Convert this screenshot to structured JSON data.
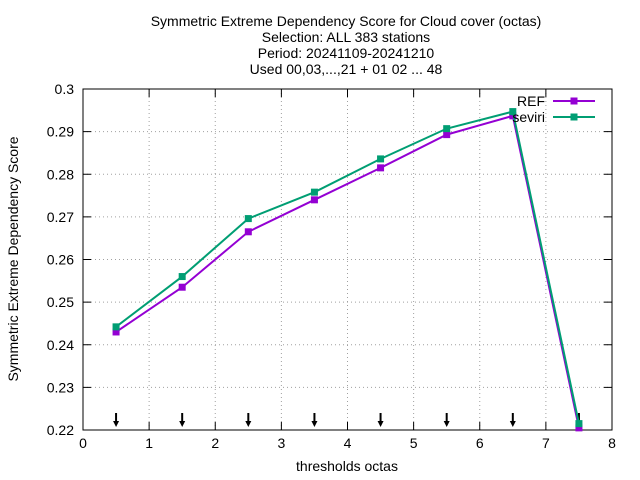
{
  "chart_data": {
    "type": "line",
    "title_lines": [
      "Symmetric Extreme Dependency Score  for Cloud cover (octas)",
      "Selection: ALL    383 stations",
      "Period: 20241109-20241210",
      "Used 00,03,...,21 + 01 02 ... 48"
    ],
    "xlabel": "thresholds octas",
    "ylabel": "Symmetric Extreme Dependency Score",
    "xlim": [
      0,
      8
    ],
    "ylim": [
      0.22,
      0.3
    ],
    "xticks": [
      "0",
      "1",
      "2",
      "3",
      "4",
      "5",
      "6",
      "7",
      "8"
    ],
    "yticks": [
      "0.22",
      "0.23",
      "0.24",
      "0.25",
      "0.26",
      "0.27",
      "0.28",
      "0.29",
      "0.3"
    ],
    "grid": true,
    "legend_position": "top-right",
    "x": [
      0.5,
      1.5,
      2.5,
      3.5,
      4.5,
      5.5,
      6.5,
      7.5
    ],
    "series": [
      {
        "name": "REF",
        "color": "#9400d3",
        "values": [
          0.243,
          0.2535,
          0.2665,
          0.274,
          0.2815,
          0.2893,
          0.2937,
          0.2205
        ]
      },
      {
        "name": "seviri",
        "color": "#009e73",
        "values": [
          0.2442,
          0.256,
          0.2696,
          0.2758,
          0.2836,
          0.2907,
          0.2947,
          0.2215
        ]
      }
    ],
    "marker_x": [
      0.5,
      1.5,
      2.5,
      3.5,
      4.5,
      5.5,
      6.5,
      7.5
    ]
  }
}
